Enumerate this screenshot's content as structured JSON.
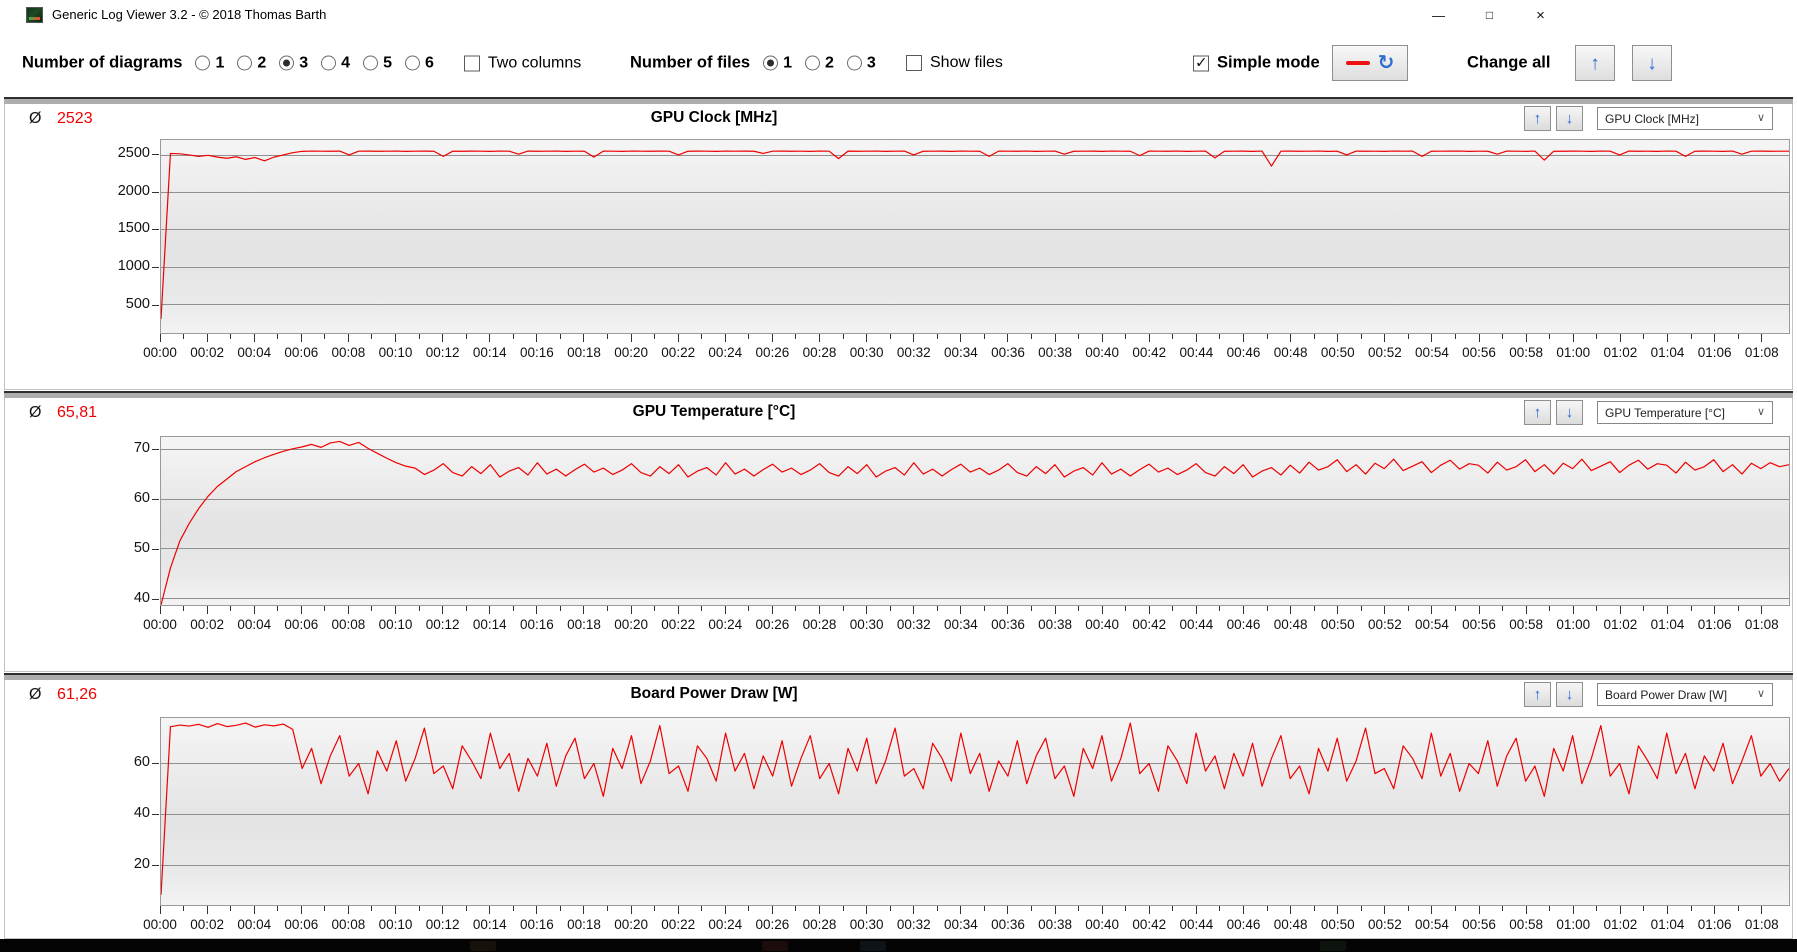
{
  "window": {
    "title": "Generic Log Viewer 3.2 - © 2018 Thomas Barth"
  },
  "icons": {
    "avg": "Ø",
    "up": "↑",
    "down": "↓",
    "chevron": "∨",
    "refresh": "↻",
    "minimize": "—",
    "maximize": "□",
    "close": "×"
  },
  "colors": {
    "series_red": "#ee0000",
    "arrow_blue": "#3a6bd0"
  },
  "toolbar": {
    "diagrams": {
      "label": "Number of diagrams",
      "options": [
        {
          "label": "1",
          "selected": false
        },
        {
          "label": "2",
          "selected": false
        },
        {
          "label": "3",
          "selected": true
        },
        {
          "label": "4",
          "selected": false
        },
        {
          "label": "5",
          "selected": false
        },
        {
          "label": "6",
          "selected": false
        }
      ]
    },
    "two_columns": {
      "label": "Two columns",
      "checked": false
    },
    "files": {
      "label": "Number of files",
      "options": [
        {
          "label": "1",
          "selected": true
        },
        {
          "label": "2",
          "selected": false
        },
        {
          "label": "3",
          "selected": false
        }
      ]
    },
    "show_files": {
      "label": "Show files",
      "checked": false
    },
    "simple_mode": {
      "label": "Simple mode",
      "checked": true
    },
    "change_all": {
      "label": "Change all"
    }
  },
  "axis": {
    "x_tick_labels": [
      "00:00",
      "00:02",
      "00:04",
      "00:06",
      "00:08",
      "00:10",
      "00:12",
      "00:14",
      "00:16",
      "00:18",
      "00:20",
      "00:22",
      "00:24",
      "00:26",
      "00:28",
      "00:30",
      "00:32",
      "00:34",
      "00:36",
      "00:38",
      "00:40",
      "00:42",
      "00:44",
      "00:46",
      "00:48",
      "00:50",
      "00:52",
      "00:54",
      "00:56",
      "00:58",
      "01:00",
      "01:02",
      "01:04",
      "01:06",
      "01:08"
    ]
  },
  "chart_data": [
    {
      "type": "line",
      "title": "GPU Clock [MHz]",
      "average": "2523",
      "selector": "GPU Clock [MHz]",
      "line_color": "#ee0000",
      "ymin": 110,
      "ymax": 2700,
      "y_ticks": [
        2500,
        2000,
        1500,
        1000,
        500
      ],
      "dt_min": 0.4,
      "values": [
        300,
        2520,
        2515,
        2500,
        2480,
        2495,
        2470,
        2455,
        2475,
        2440,
        2465,
        2420,
        2470,
        2500,
        2530,
        2548,
        2552,
        2550,
        2549,
        2551,
        2500,
        2550,
        2551,
        2549,
        2550,
        2552,
        2548,
        2550,
        2551,
        2549,
        2480,
        2550,
        2549,
        2551,
        2550,
        2548,
        2552,
        2550,
        2510,
        2551,
        2549,
        2550,
        2552,
        2548,
        2550,
        2549,
        2470,
        2551,
        2550,
        2548,
        2552,
        2550,
        2549,
        2551,
        2550,
        2500,
        2549,
        2551,
        2550,
        2548,
        2552,
        2550,
        2551,
        2549,
        2520,
        2550,
        2551,
        2549,
        2550,
        2548,
        2552,
        2550,
        2450,
        2551,
        2549,
        2550,
        2552,
        2548,
        2550,
        2551,
        2500,
        2549,
        2550,
        2551,
        2548,
        2552,
        2550,
        2549,
        2480,
        2551,
        2550,
        2549,
        2552,
        2548,
        2550,
        2551,
        2510,
        2549,
        2550,
        2551,
        2548,
        2552,
        2550,
        2549,
        2490,
        2551,
        2550,
        2549,
        2552,
        2548,
        2550,
        2551,
        2460,
        2549,
        2550,
        2551,
        2548,
        2552,
        2350,
        2550,
        2551,
        2549,
        2550,
        2552,
        2548,
        2550,
        2500,
        2551,
        2549,
        2550,
        2548,
        2552,
        2550,
        2551,
        2480,
        2549,
        2550,
        2551,
        2552,
        2548,
        2550,
        2549,
        2510,
        2551,
        2550,
        2548,
        2552,
        2430,
        2550,
        2549,
        2551,
        2550,
        2548,
        2552,
        2550,
        2500,
        2551,
        2549,
        2550,
        2548,
        2552,
        2550,
        2480,
        2549,
        2551,
        2550,
        2548,
        2552,
        2510,
        2550,
        2551,
        2549,
        2550,
        2550
      ]
    },
    {
      "type": "line",
      "title": "GPU Temperature [°C]",
      "average": "65,81",
      "selector": "GPU Temperature [°C]",
      "line_color": "#ee0000",
      "ymin": 38.5,
      "ymax": 72.5,
      "y_ticks": [
        70,
        60,
        50,
        40
      ],
      "dt_min": 0.4,
      "values": [
        38.5,
        46,
        51.5,
        55,
        58,
        60.5,
        62.5,
        64,
        65.5,
        66.5,
        67.5,
        68.3,
        69,
        69.6,
        70.1,
        70.5,
        71,
        70.4,
        71.3,
        71.6,
        70.8,
        71.4,
        70.2,
        69.2,
        68.2,
        67.3,
        66.6,
        66.2,
        64.9,
        65.8,
        67.1,
        65.3,
        64.6,
        66.5,
        65.1,
        66.9,
        64.4,
        65.6,
        66.3,
        64.8,
        67.3,
        65,
        66,
        64.6,
        65.9,
        67,
        65.4,
        66.2,
        64.9,
        65.8,
        67.1,
        65.3,
        64.6,
        66.5,
        65.1,
        66.9,
        64.4,
        65.6,
        66.3,
        64.8,
        67.3,
        65,
        66,
        64.6,
        65.9,
        67,
        65.4,
        66.2,
        64.9,
        65.8,
        67.1,
        65.3,
        64.6,
        66.5,
        65.1,
        66.9,
        64.4,
        65.6,
        66.3,
        64.8,
        67.3,
        65,
        66,
        64.6,
        65.9,
        67,
        65.4,
        66.2,
        64.9,
        65.8,
        67.1,
        65.3,
        64.6,
        66.5,
        65.1,
        66.9,
        64.4,
        65.6,
        66.3,
        64.8,
        67.3,
        65,
        66,
        64.6,
        65.9,
        67,
        65.4,
        66.2,
        64.9,
        65.8,
        67.1,
        65.3,
        64.6,
        66.5,
        65.1,
        66.9,
        64.4,
        65.6,
        66.3,
        64.8,
        66.8,
        65.2,
        67.4,
        65.8,
        66.5,
        67.9,
        65.5,
        66.9,
        65,
        67.2,
        66.1,
        68,
        65.7,
        66.6,
        67.5,
        65.3,
        66.8,
        67.8,
        66,
        67.1,
        66.8,
        65.2,
        67.4,
        65.8,
        66.5,
        67.9,
        65.5,
        66.9,
        65,
        67.2,
        66.1,
        68,
        65.7,
        66.6,
        67.5,
        65.3,
        66.8,
        67.8,
        66,
        67.1,
        66.8,
        65.2,
        67.4,
        65.8,
        66.5,
        67.9,
        65.5,
        66.9,
        65,
        67.2,
        66.1,
        67.3,
        66.5,
        66.9
      ]
    },
    {
      "type": "line",
      "title": "Board Power Draw [W]",
      "average": "61,26",
      "selector": "Board Power Draw [W]",
      "line_color": "#ee0000",
      "ymin": 4,
      "ymax": 78,
      "y_ticks": [
        60,
        40,
        20
      ],
      "dt_min": 0.4,
      "values": [
        8,
        74.5,
        75.2,
        74.8,
        75.5,
        74.3,
        75.8,
        74.6,
        75.1,
        76,
        74.4,
        75.3,
        74.9,
        75.6,
        73.5,
        58,
        66,
        52,
        63,
        71,
        55,
        60,
        48,
        65,
        57,
        69,
        53,
        62,
        74,
        56,
        59,
        50,
        67,
        61,
        54,
        72,
        58,
        64,
        49,
        62,
        55,
        68,
        51,
        63,
        70,
        54,
        60,
        47,
        66,
        58,
        71,
        52,
        61,
        75,
        56,
        59,
        49,
        67,
        62,
        53,
        72,
        57,
        64,
        50,
        63,
        55,
        69,
        51,
        62,
        71,
        54,
        60,
        48,
        66,
        57,
        70,
        52,
        61,
        74,
        55,
        58,
        50,
        68,
        62,
        53,
        72,
        56,
        64,
        49,
        61,
        55,
        69,
        52,
        63,
        70,
        54,
        59,
        47,
        66,
        58,
        71,
        53,
        62,
        76,
        56,
        60,
        49,
        67,
        61,
        52,
        72,
        57,
        63,
        50,
        64,
        55,
        68,
        51,
        62,
        71,
        54,
        59,
        48,
        66,
        57,
        70,
        53,
        61,
        74,
        56,
        58,
        50,
        67,
        62,
        54,
        72,
        55,
        64,
        49,
        60,
        56,
        69,
        51,
        63,
        70,
        53,
        59,
        47,
        66,
        57,
        71,
        52,
        62,
        75,
        55,
        60,
        48,
        67,
        61,
        54,
        72,
        56,
        64,
        50,
        63,
        57,
        68,
        52,
        61,
        71,
        55,
        60,
        53,
        58
      ]
    }
  ]
}
